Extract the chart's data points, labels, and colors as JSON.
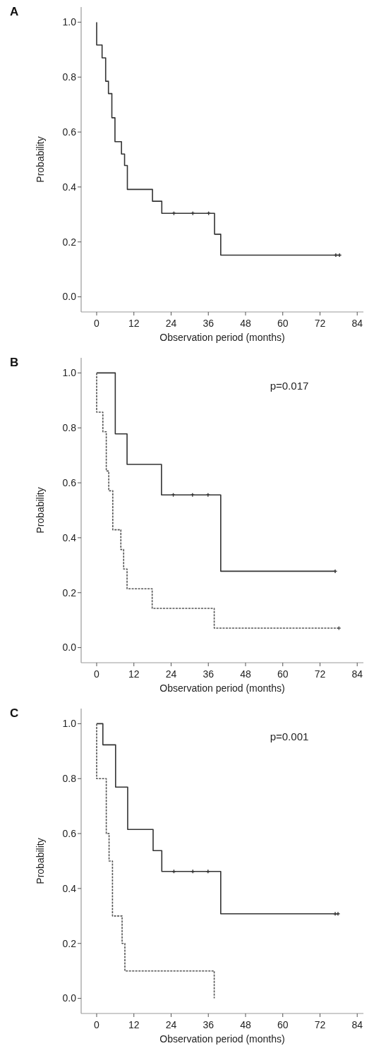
{
  "chart_data": [
    {
      "type": "step",
      "title": "A",
      "xlabel": "Observation period (months)",
      "ylabel": "Probability",
      "xlim": [
        -5,
        86
      ],
      "ylim": [
        -0.055,
        1.055
      ],
      "xticks": [
        0,
        12,
        24,
        36,
        48,
        60,
        72,
        84
      ],
      "yticks": [
        {
          "value": 0,
          "label": "0.0"
        },
        {
          "value": 0.2,
          "label": "0.2"
        },
        {
          "value": 0.4,
          "label": "0.4"
        },
        {
          "value": 0.6,
          "label": "0.6"
        },
        {
          "value": 0.8,
          "label": "0.8"
        },
        {
          "value": 1,
          "label": "1.0"
        }
      ],
      "grid": false,
      "series": [
        {
          "type": "step",
          "color": "#333333",
          "line_style": "solid",
          "x": [
            0,
            0,
            1.75,
            2.9,
            3.8,
            4.9,
            5.9,
            8,
            9,
            9.9,
            18,
            21,
            38,
            40,
            78.3
          ],
          "values": [
            1.0,
            0.917,
            0.87,
            0.785,
            0.74,
            0.652,
            0.565,
            0.52,
            0.478,
            0.391,
            0.348,
            0.304,
            0.228,
            0.152,
            0.152
          ]
        },
        {
          "type": "scatter",
          "color": "#333333",
          "marker": "cross",
          "x": [
            24.9,
            31,
            36.1,
            77.1,
            78.3
          ],
          "values": [
            0.304,
            0.304,
            0.304,
            0.152,
            0.152
          ]
        }
      ]
    },
    {
      "type": "step",
      "title": "B",
      "xlabel": "Observation period (months)",
      "ylabel": "Probability",
      "xlim": [
        -5,
        86
      ],
      "ylim": [
        -0.055,
        1.055
      ],
      "xticks": [
        0,
        12,
        24,
        36,
        48,
        60,
        72,
        84
      ],
      "yticks": [
        {
          "value": 0,
          "label": "0.0"
        },
        {
          "value": 0.2,
          "label": "0.2"
        },
        {
          "value": 0.4,
          "label": "0.4"
        },
        {
          "value": 0.6,
          "label": "0.6"
        },
        {
          "value": 0.8,
          "label": "0.8"
        },
        {
          "value": 1,
          "label": "1.0"
        }
      ],
      "grid": false,
      "annotations": [
        "p=0.017"
      ],
      "series": [
        {
          "type": "step",
          "color": "#333333",
          "line_style": "solid",
          "x": [
            0,
            6,
            9.8,
            20.9,
            40,
            76.9
          ],
          "values": [
            1.0,
            0.778,
            0.667,
            0.556,
            0.278,
            0.278
          ]
        },
        {
          "type": "step",
          "color": "#555555",
          "line_style": "dashed",
          "x": [
            0,
            0,
            2,
            3.1,
            3.9,
            5.2,
            7.8,
            8.7,
            9.8,
            17.9,
            37.9,
            78.1
          ],
          "values": [
            1.0,
            0.857,
            0.786,
            0.643,
            0.571,
            0.429,
            0.357,
            0.286,
            0.214,
            0.143,
            0.071,
            0.071
          ]
        },
        {
          "type": "scatter",
          "color": "#333333",
          "marker": "cross",
          "x": [
            24.7,
            30.9,
            35.9,
            76.9
          ],
          "values": [
            0.556,
            0.556,
            0.556,
            0.278
          ]
        },
        {
          "type": "scatter",
          "color": "#555555",
          "marker": "cross",
          "x": [
            78.1
          ],
          "values": [
            0.071
          ]
        }
      ]
    },
    {
      "type": "step",
      "title": "C",
      "xlabel": "Observation period (months)",
      "ylabel": "Probability",
      "xlim": [
        -5,
        86
      ],
      "ylim": [
        -0.055,
        1.055
      ],
      "xticks": [
        0,
        12,
        24,
        36,
        48,
        60,
        72,
        84
      ],
      "yticks": [
        {
          "value": 0,
          "label": "0.0"
        },
        {
          "value": 0.2,
          "label": "0.2"
        },
        {
          "value": 0.4,
          "label": "0.4"
        },
        {
          "value": 0.6,
          "label": "0.6"
        },
        {
          "value": 0.8,
          "label": "0.8"
        },
        {
          "value": 1,
          "label": "1.0"
        }
      ],
      "grid": false,
      "annotations": [
        "p=0.001"
      ],
      "series": [
        {
          "type": "step",
          "color": "#333333",
          "line_style": "solid",
          "x": [
            0,
            2,
            6.1,
            10,
            18.2,
            21,
            40,
            77.8
          ],
          "values": [
            1.0,
            0.923,
            0.769,
            0.615,
            0.538,
            0.462,
            0.308,
            0.308
          ]
        },
        {
          "type": "step",
          "color": "#555555",
          "line_style": "dashed",
          "x": [
            0,
            0,
            3.1,
            4,
            5.1,
            8.2,
            9.1,
            37.9
          ],
          "values": [
            1.0,
            0.8,
            0.6,
            0.5,
            0.3,
            0.2,
            0.1,
            0.0
          ]
        },
        {
          "type": "scatter",
          "color": "#333333",
          "marker": "cross",
          "x": [
            24.9,
            31,
            35.9,
            76.9,
            77.8
          ],
          "values": [
            0.462,
            0.462,
            0.462,
            0.308,
            0.308
          ]
        }
      ]
    }
  ]
}
